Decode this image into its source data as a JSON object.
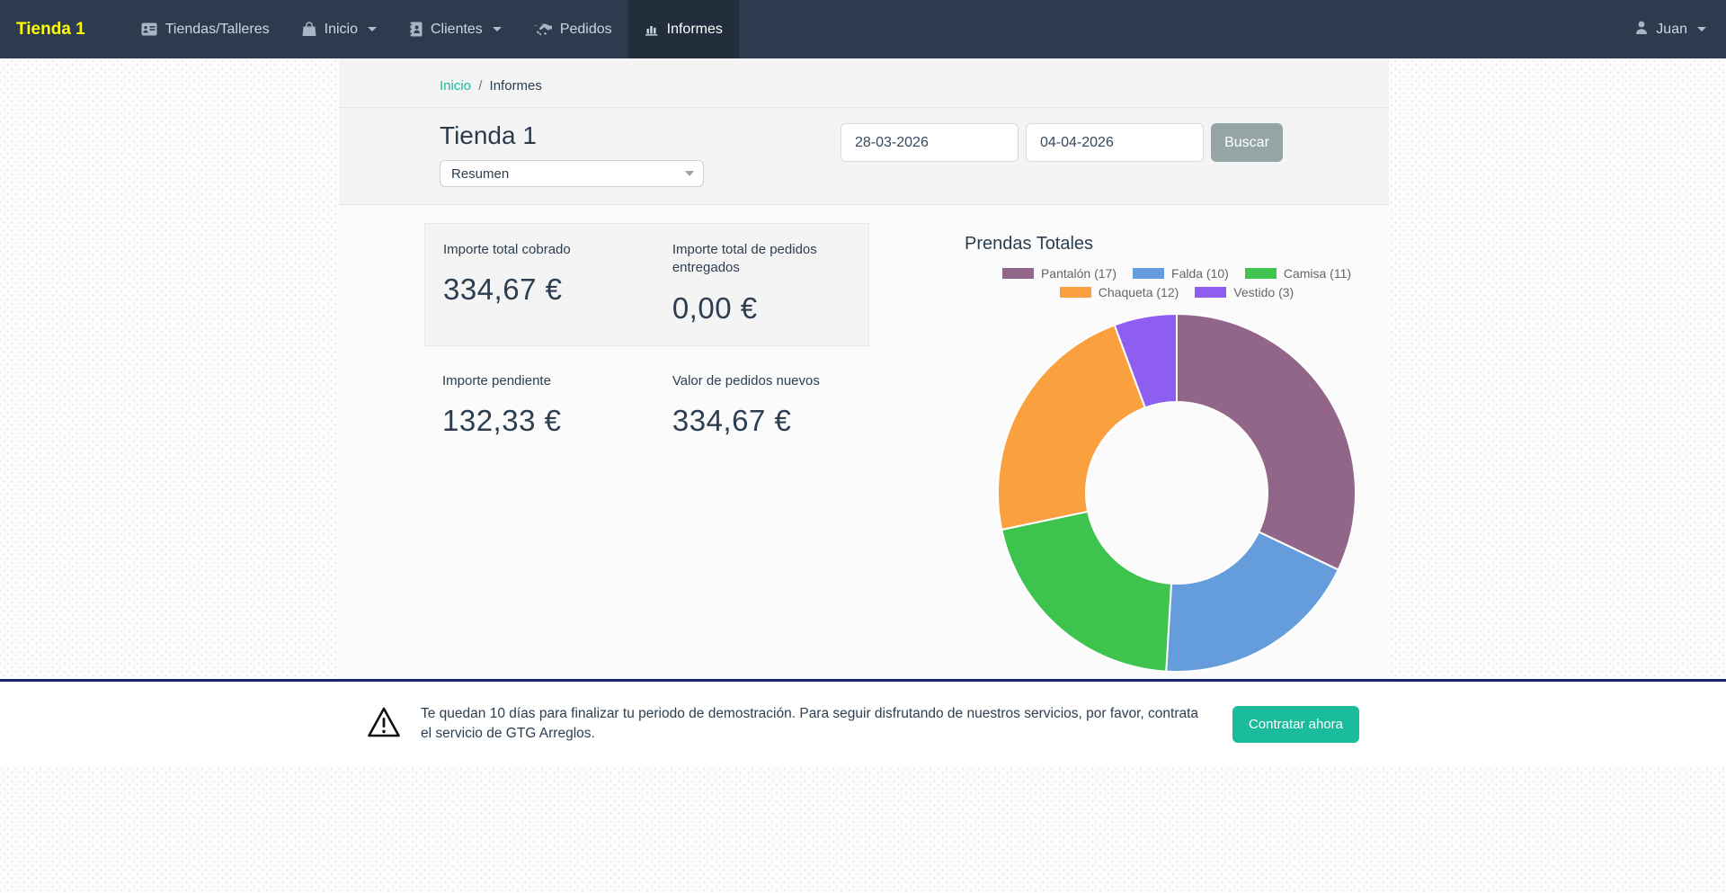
{
  "navbar": {
    "brand": "Tienda 1",
    "items": [
      {
        "label": "Tiendas/Talleres",
        "icon": "id-card-icon",
        "active": false,
        "caret": false
      },
      {
        "label": "Inicio",
        "icon": "shopping-bag-icon",
        "active": false,
        "caret": true
      },
      {
        "label": "Clientes",
        "icon": "address-book-icon",
        "active": false,
        "caret": true
      },
      {
        "label": "Pedidos",
        "icon": "handshake-icon",
        "active": false,
        "caret": false
      },
      {
        "label": "Informes",
        "icon": "bar-chart-icon",
        "active": true,
        "caret": false
      }
    ],
    "user": {
      "label": "Juan"
    }
  },
  "breadcrumb": {
    "home": "Inicio",
    "separator": "/",
    "current": "Informes"
  },
  "toolbar": {
    "title": "Tienda 1",
    "report_select_value": "Resumen",
    "date_from": "28-03-2026",
    "date_to": "04-04-2026",
    "search_label": "Buscar"
  },
  "stats": [
    {
      "label": "Importe total cobrado",
      "value": "334,67 €"
    },
    {
      "label": "Importe total de pedidos entregados",
      "value": "0,00 €"
    },
    {
      "label": "Importe pendiente",
      "value": "132,33 €"
    },
    {
      "label": "Valor de pedidos nuevos",
      "value": "334,67 €"
    }
  ],
  "chart_data": {
    "type": "pie",
    "variant": "doughnut",
    "title": "Prendas Totales",
    "categories": [
      "Pantalón",
      "Falda",
      "Camisa",
      "Chaqueta",
      "Vestido"
    ],
    "values": [
      17,
      10,
      11,
      12,
      3
    ],
    "colors": [
      "#926689",
      "#649cdc",
      "#3ec34e",
      "#faa03f",
      "#8e5ef0"
    ],
    "legend_labels": [
      "Pantalón (17)",
      "Falda (10)",
      "Camisa (11)",
      "Chaqueta (12)",
      "Vestido (3)"
    ],
    "legend_position": "top",
    "legend_items_per_row": 3,
    "donut_hole_ratio": 0.5,
    "start_angle_deg": 0,
    "direction": "clockwise"
  },
  "footer": {
    "message": "Te quedan 10 días para finalizar tu periodo de demostración. Para seguir disfrutando de nuestros servicios, por favor, contrata el servicio de GTG Arreglos.",
    "cta_label": "Contratar ahora",
    "accent_color": "#1abc9c"
  }
}
